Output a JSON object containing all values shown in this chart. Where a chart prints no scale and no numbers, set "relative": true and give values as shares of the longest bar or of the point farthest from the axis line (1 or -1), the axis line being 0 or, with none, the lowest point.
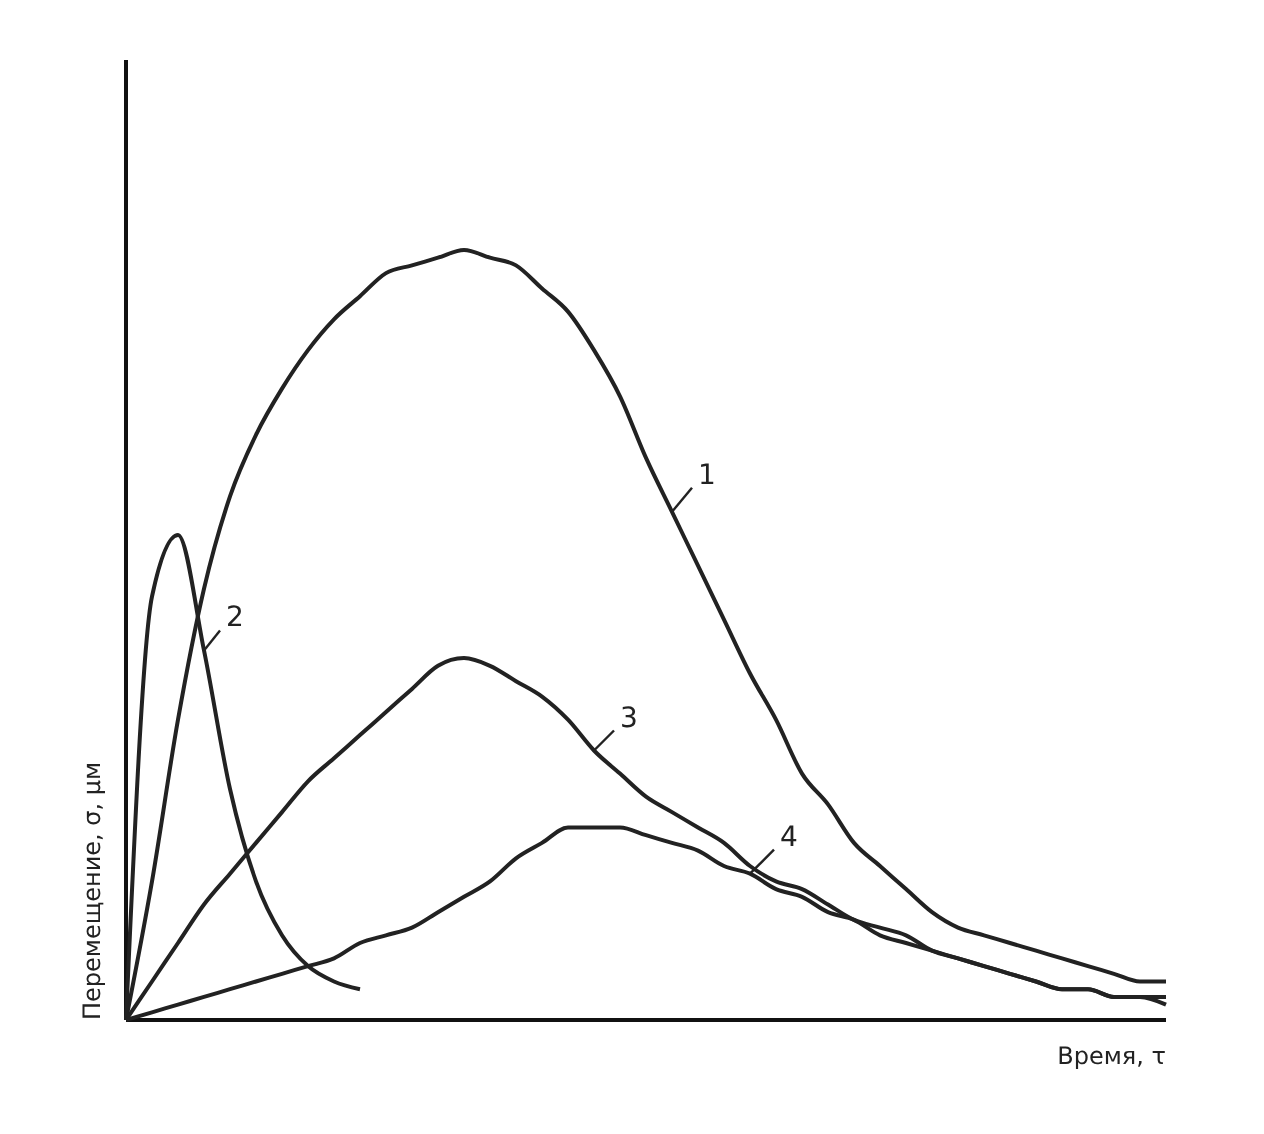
{
  "chart_data": {
    "type": "line",
    "relative": true,
    "xlabel": "Время, τ",
    "ylabel": "Перемещение, σ, μм",
    "categories": [
      null,
      null,
      null,
      null,
      null,
      null,
      null,
      null,
      null,
      null,
      null,
      null,
      null,
      null,
      null,
      null,
      null,
      null,
      null,
      null,
      null,
      null,
      null,
      null,
      null,
      null,
      null,
      null,
      null,
      null,
      null,
      null,
      null,
      null,
      null,
      null,
      null,
      null,
      null,
      null,
      null
    ],
    "marker": "none",
    "line_style": "solid",
    "series": [
      {
        "name": "1",
        "color": "#222222",
        "values": [
          0,
          0.18,
          0.39,
          0.56,
          0.68,
          0.76,
          0.82,
          0.87,
          0.91,
          0.94,
          0.97,
          0.98,
          0.99,
          1,
          0.99,
          0.98,
          0.95,
          0.92,
          0.87,
          0.81,
          0.73,
          0.66,
          0.59,
          0.52,
          0.45,
          0.39,
          0.32,
          0.28,
          0.23,
          0.2,
          0.17,
          0.14,
          0.12,
          0.11,
          0.1,
          0.09,
          0.08,
          0.07,
          0.06,
          0.05,
          0.05
        ]
      },
      {
        "name": "2",
        "color": "#222222",
        "values": [
          0,
          0.55,
          0.63,
          0.48,
          0.3,
          0.18,
          0.11,
          0.07,
          0.05,
          0.04,
          null,
          null,
          null,
          null,
          null,
          null,
          null,
          null,
          null,
          null,
          null,
          null,
          null,
          null,
          null,
          null,
          null,
          null,
          null,
          null,
          null,
          null,
          null,
          null,
          null,
          null,
          null,
          null,
          null,
          null,
          null
        ]
      },
      {
        "name": "3",
        "color": "#222222",
        "values": [
          0,
          0.05,
          0.1,
          0.15,
          0.19,
          0.23,
          0.27,
          0.31,
          0.34,
          0.37,
          0.4,
          0.43,
          0.46,
          0.47,
          0.46,
          0.44,
          0.42,
          0.39,
          0.35,
          0.32,
          0.29,
          0.27,
          0.25,
          0.23,
          0.2,
          0.18,
          0.17,
          0.15,
          0.13,
          0.12,
          0.11,
          0.09,
          0.08,
          0.07,
          0.06,
          0.05,
          0.04,
          0.04,
          0.03,
          0.03,
          0.03
        ]
      },
      {
        "name": "4",
        "color": "#222222",
        "values": [
          0,
          0.01,
          0.02,
          0.03,
          0.04,
          0.05,
          0.06,
          0.07,
          0.08,
          0.1,
          0.11,
          0.12,
          0.14,
          0.16,
          0.18,
          0.21,
          0.23,
          0.25,
          0.25,
          0.25,
          0.24,
          0.23,
          0.22,
          0.2,
          0.19,
          0.17,
          0.16,
          0.14,
          0.13,
          0.11,
          0.1,
          0.09,
          0.08,
          0.07,
          0.06,
          0.05,
          0.04,
          0.04,
          0.03,
          0.03,
          0.02
        ]
      }
    ]
  }
}
